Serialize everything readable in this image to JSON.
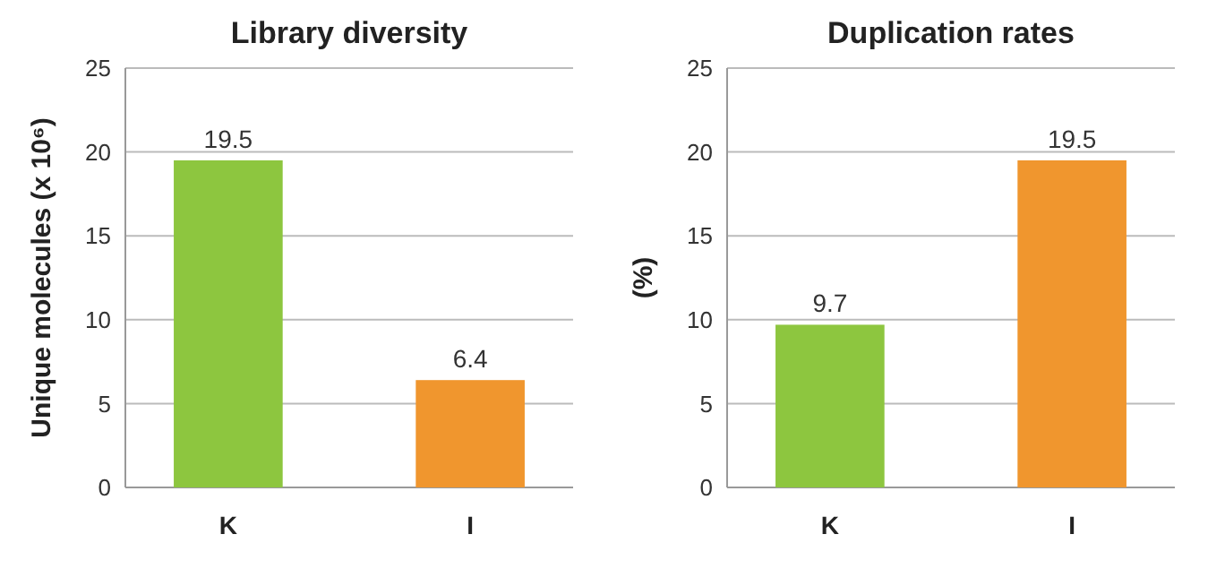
{
  "chart_data": [
    {
      "type": "bar",
      "title": "Library diversity",
      "ylabel": "Unique molecules (x 10⁶)",
      "categories": [
        "K",
        "I"
      ],
      "values": [
        19.5,
        6.4
      ],
      "colors": [
        "#8dc63f",
        "#f0962e"
      ],
      "ylim": [
        0,
        25
      ],
      "yticks": [
        0,
        5,
        10,
        15,
        20,
        25
      ],
      "grid": "y",
      "data_labels": true
    },
    {
      "type": "bar",
      "title": "Duplication rates",
      "ylabel": "(%)",
      "categories": [
        "K",
        "I"
      ],
      "values": [
        9.7,
        19.5
      ],
      "colors": [
        "#8dc63f",
        "#f0962e"
      ],
      "ylim": [
        0,
        25
      ],
      "yticks": [
        0,
        5,
        10,
        15,
        20,
        25
      ],
      "grid": "y",
      "data_labels": true
    }
  ]
}
